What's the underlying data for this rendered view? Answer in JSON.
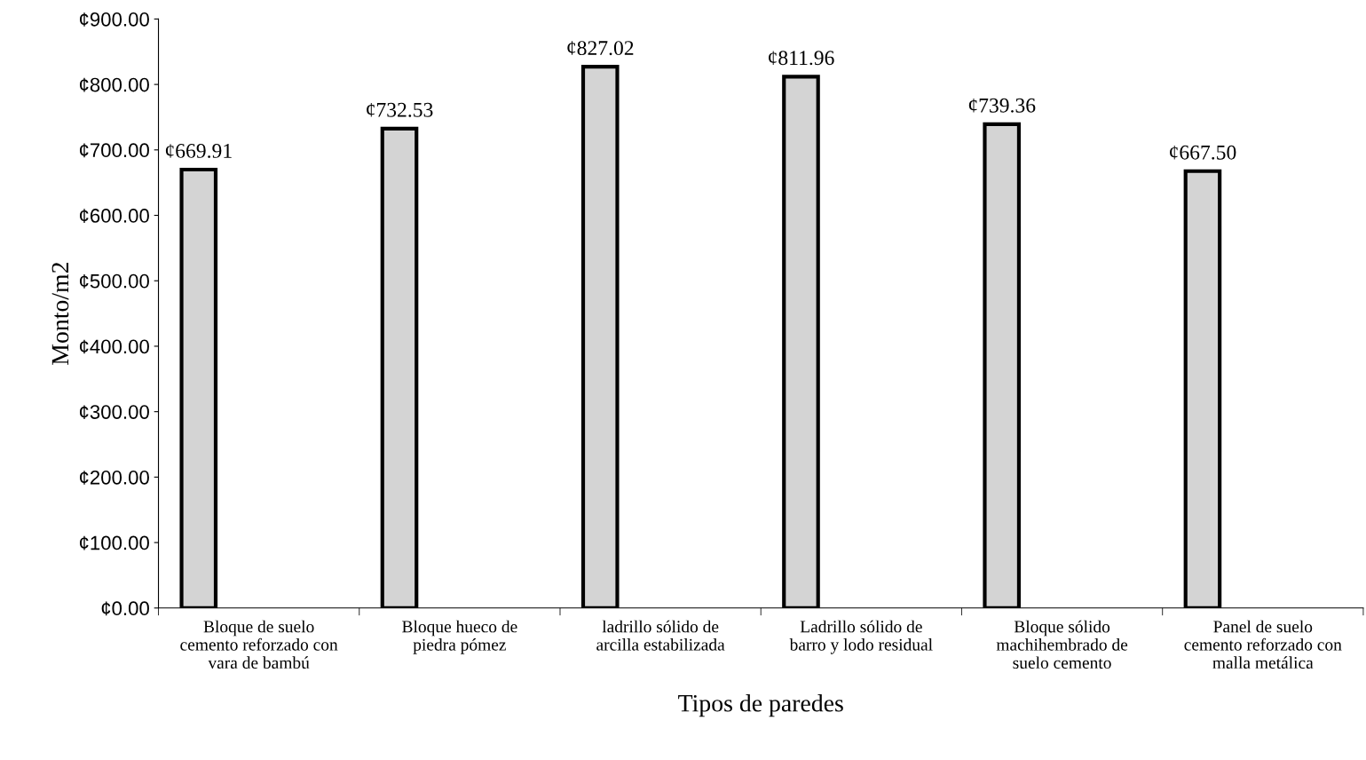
{
  "chart_data": {
    "type": "bar",
    "xlabel": "Tipos de paredes",
    "ylabel": "Monto/m2",
    "categories": [
      "Bloque de suelo\ncemento reforzado con\nvara de bambú",
      "Bloque hueco de\npiedra pómez",
      "ladrillo sólido de\narcilla estabilizada",
      "Ladrillo sólido de\nbarro y lodo residual",
      "Bloque sólido\nmachihembrado de\nsuelo cemento",
      "Panel de suelo\ncemento reforzado con\nmalla metálica"
    ],
    "values": [
      669.91,
      732.53,
      827.02,
      811.96,
      739.36,
      667.5
    ],
    "value_labels": [
      "¢669.91",
      "¢732.53",
      "¢827.02",
      "¢811.96",
      "¢739.36",
      "¢667.50"
    ],
    "color": "#d4d4d4",
    "ylim": [
      0,
      900
    ],
    "yticks": [
      {
        "value": 0,
        "label": "¢0.00"
      },
      {
        "value": 100,
        "label": "¢100.00"
      },
      {
        "value": 200,
        "label": "¢200.00"
      },
      {
        "value": 300,
        "label": "¢300.00"
      },
      {
        "value": 400,
        "label": "¢400.00"
      },
      {
        "value": 500,
        "label": "¢500.00"
      },
      {
        "value": 600,
        "label": "¢600.00"
      },
      {
        "value": 700,
        "label": "¢700.00"
      },
      {
        "value": 800,
        "label": "¢800.00"
      },
      {
        "value": 900,
        "label": "¢900.00"
      }
    ],
    "grid": false,
    "legend": false
  }
}
